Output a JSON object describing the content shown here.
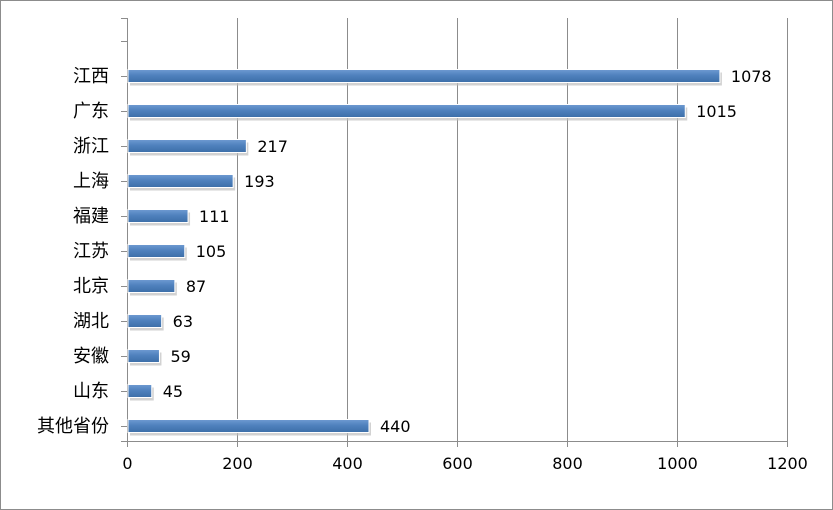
{
  "chart_data": {
    "type": "bar",
    "orientation": "horizontal",
    "categories": [
      "江西",
      "广东",
      "浙江",
      "上海",
      "福建",
      "江苏",
      "北京",
      "湖北",
      "安徽",
      "山东",
      "其他省份"
    ],
    "values": [
      1078,
      1015,
      217,
      193,
      111,
      105,
      87,
      63,
      59,
      45,
      440
    ],
    "data_labels": [
      "1078",
      "1015",
      "217",
      "193",
      "111",
      "105",
      "87",
      "63",
      "59",
      "45",
      "440"
    ],
    "title": "",
    "xlabel": "",
    "ylabel": "",
    "xlim": [
      0,
      1200
    ],
    "x_ticks": [
      0,
      200,
      400,
      600,
      800,
      1000,
      1200
    ],
    "x_tick_labels": [
      "0",
      "200",
      "400",
      "600",
      "800",
      "1000",
      "1200"
    ],
    "grid": "vertical major gridlines",
    "legend": "none",
    "colors": {
      "bar": "#4f81bd",
      "bar_edge": "#3a6aa5",
      "grid": "#8c8c8c",
      "axis": "#8c8c8c"
    }
  }
}
